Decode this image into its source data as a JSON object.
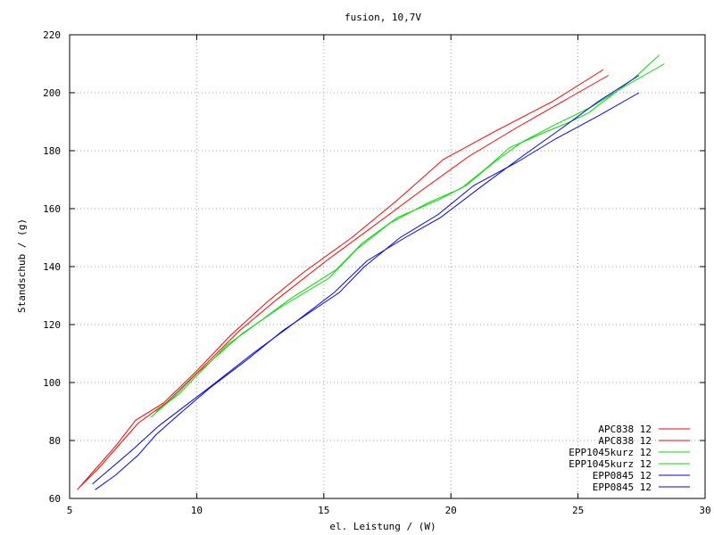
{
  "chart_data": {
    "type": "line",
    "title": "fusion, 10,7V",
    "xlabel": "el. Leistung / (W)",
    "ylabel": "Standschub / (g)",
    "xlim": [
      5,
      30
    ],
    "ylim": [
      60,
      220
    ],
    "x_ticks": [
      "5",
      "10",
      "15",
      "20",
      "25",
      "30"
    ],
    "y_ticks": [
      "60",
      "80",
      "100",
      "120",
      "140",
      "160",
      "180",
      "200",
      "220"
    ],
    "grid": true,
    "legend_position": "bottom-right",
    "series": [
      {
        "name": "APC838 12",
        "color": "#ff0000",
        "points": [
          [
            5.3,
            63
          ],
          [
            6.0,
            70
          ],
          [
            6.8,
            78
          ],
          [
            7.6,
            87
          ],
          [
            8.7,
            93
          ],
          [
            10.0,
            104
          ],
          [
            11.3,
            116
          ],
          [
            12.8,
            128
          ],
          [
            14.2,
            138
          ],
          [
            16.1,
            150
          ],
          [
            17.9,
            163
          ],
          [
            19.7,
            177
          ],
          [
            21.8,
            187
          ],
          [
            24.0,
            197
          ],
          [
            26.0,
            208
          ]
        ]
      },
      {
        "name": "APC838 12",
        "color": "#ff0000",
        "points": [
          [
            5.4,
            64
          ],
          [
            6.1,
            70
          ],
          [
            6.9,
            78
          ],
          [
            7.7,
            86
          ],
          [
            8.8,
            93
          ],
          [
            10.2,
            105
          ],
          [
            11.7,
            118
          ],
          [
            13.2,
            129
          ],
          [
            15.1,
            142
          ],
          [
            16.8,
            153
          ],
          [
            18.8,
            166
          ],
          [
            20.7,
            178
          ],
          [
            22.6,
            188
          ],
          [
            24.6,
            198
          ],
          [
            26.2,
            206
          ]
        ]
      },
      {
        "name": "EPP1045kurz 12",
        "color": "#00dd00",
        "points": [
          [
            8.2,
            88
          ],
          [
            9.1,
            95
          ],
          [
            10.0,
            103
          ],
          [
            10.9,
            110
          ],
          [
            11.8,
            117
          ],
          [
            13.3,
            126
          ],
          [
            15.2,
            136
          ],
          [
            16.3,
            146
          ],
          [
            17.6,
            155
          ],
          [
            19.1,
            162
          ],
          [
            20.4,
            167
          ],
          [
            21.4,
            174
          ],
          [
            22.3,
            181
          ],
          [
            23.6,
            186
          ],
          [
            24.7,
            190
          ],
          [
            25.4,
            193
          ],
          [
            26.3,
            199
          ],
          [
            27.2,
            205
          ],
          [
            28.2,
            213
          ]
        ]
      },
      {
        "name": "EPP1045kurz 12",
        "color": "#00dd00",
        "points": [
          [
            8.4,
            90
          ],
          [
            9.3,
            96
          ],
          [
            10.3,
            105
          ],
          [
            11.2,
            113
          ],
          [
            12.0,
            118
          ],
          [
            13.7,
            129
          ],
          [
            15.5,
            139
          ],
          [
            16.5,
            148
          ],
          [
            17.9,
            157
          ],
          [
            19.5,
            163
          ],
          [
            20.6,
            168
          ],
          [
            21.7,
            176
          ],
          [
            22.8,
            183
          ],
          [
            24.1,
            189
          ],
          [
            25.5,
            195
          ],
          [
            26.8,
            202
          ],
          [
            28.4,
            210
          ]
        ]
      },
      {
        "name": "EPP0845 12",
        "color": "#0000ff",
        "points": [
          [
            5.9,
            65
          ],
          [
            6.7,
            71
          ],
          [
            7.5,
            77
          ],
          [
            8.5,
            85
          ],
          [
            9.4,
            91
          ],
          [
            10.6,
            99
          ],
          [
            12.2,
            110
          ],
          [
            13.6,
            119
          ],
          [
            15.4,
            131
          ],
          [
            16.7,
            142
          ],
          [
            18.2,
            150
          ],
          [
            19.6,
            157
          ],
          [
            21.1,
            167
          ],
          [
            22.8,
            178
          ],
          [
            24.4,
            188
          ],
          [
            25.8,
            197
          ],
          [
            27.4,
            206
          ]
        ]
      },
      {
        "name": "EPP0845 12",
        "color": "#0000ff",
        "points": [
          [
            6.0,
            63
          ],
          [
            6.8,
            68
          ],
          [
            7.7,
            75
          ],
          [
            8.4,
            82
          ],
          [
            9.3,
            89
          ],
          [
            10.5,
            98
          ],
          [
            12.0,
            108
          ],
          [
            13.4,
            118
          ],
          [
            15.6,
            131
          ],
          [
            16.6,
            140
          ],
          [
            18.0,
            150
          ],
          [
            19.5,
            158
          ],
          [
            20.9,
            168
          ],
          [
            22.6,
            176
          ],
          [
            24.1,
            184
          ],
          [
            25.8,
            192
          ],
          [
            27.4,
            200
          ]
        ]
      }
    ]
  }
}
